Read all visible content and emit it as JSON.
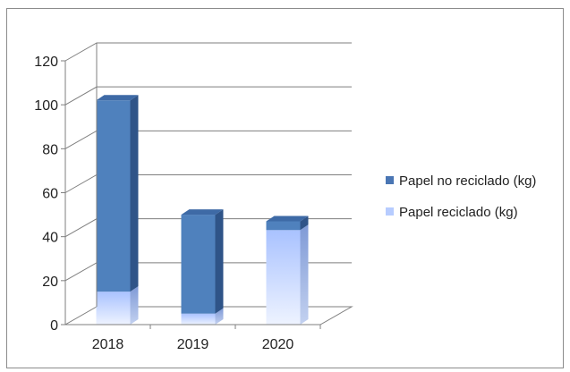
{
  "chart_data": {
    "type": "bar",
    "stacked": true,
    "three_d": true,
    "categories": [
      "2018",
      "2019",
      "2020"
    ],
    "series": [
      {
        "name": "Papel reciclado (kg)",
        "values": [
          15,
          5,
          43
        ],
        "color": "#c6d6ff"
      },
      {
        "name": "Papel no reciclado (kg)",
        "values": [
          87,
          45,
          4
        ],
        "color": "#4f81bd"
      }
    ],
    "y_ticks": [
      "0",
      "20",
      "40",
      "60",
      "80",
      "100",
      "120"
    ],
    "ylim": [
      0,
      120
    ],
    "grid": true,
    "legend_position": "right",
    "legend_order": [
      "Papel no reciclado (kg)",
      "Papel reciclado (kg)"
    ],
    "title": "",
    "xlabel": "",
    "ylabel": ""
  }
}
